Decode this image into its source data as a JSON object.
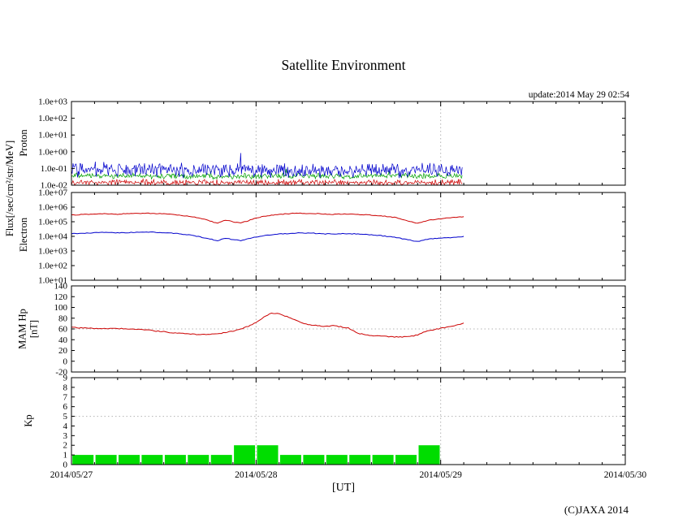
{
  "page": {
    "title": "Satellite Environment",
    "update_text": "update:2014 May 29 02:54",
    "copyright": "(C)JAXA 2014",
    "flux_axis_label": "Flux[/sec/cm²/str/MeV]"
  },
  "chart_data": {
    "type": "line",
    "title": "Satellite Environment",
    "x_axis": {
      "label": "[UT]",
      "ticks": [
        "2014/05/27",
        "2014/05/28",
        "2014/05/29",
        "2014/05/30"
      ],
      "range_hours": [
        0,
        72
      ],
      "minor_tick_hours": 3,
      "grid_hours": [
        24,
        48
      ]
    },
    "panels": [
      {
        "id": "proton",
        "ylabel": "Proton",
        "yscale": "log",
        "ylim": [
          0.01,
          1000
        ],
        "yticks": [
          "1.0e+03",
          "1.0e+02",
          "1.0e+01",
          "1.0e+00",
          "1.0e-01",
          "1.0e-02"
        ],
        "data_end_hour": 50.9,
        "noise_series": [
          {
            "name": "proton-flux-green",
            "color": "#00a000",
            "log10_base": -1.45,
            "log10_amp": 0.2
          },
          {
            "name": "proton-flux-red",
            "color": "#cc0000",
            "log10_base": -1.85,
            "log10_amp": 0.22
          },
          {
            "name": "proton-flux-blue",
            "color": "#0000cc",
            "log10_base": -1.12,
            "log10_amp": 0.5
          }
        ]
      },
      {
        "id": "electron",
        "ylabel": "Electron",
        "yscale": "log",
        "ylim": [
          10,
          10000000
        ],
        "yticks": [
          "1.0e+07",
          "1.0e+06",
          "1.0e+05",
          "1.0e+04",
          "1.0e+03",
          "1.0e+02",
          "1.0e+01"
        ],
        "series": [
          {
            "name": "electron-flux-red",
            "color": "#cc0000",
            "x_start": 0,
            "x_step_hours": 1,
            "values": [
              280000.0,
              300000.0,
              320000.0,
              340000.0,
              350000.0,
              340000.0,
              330000.0,
              350000.0,
              360000.0,
              370000.0,
              380000.0,
              370000.0,
              350000.0,
              320000.0,
              290000.0,
              240000.0,
              200000.0,
              160000.0,
              110000.0,
              80000.0,
              130000.0,
              100000.0,
              80000.0,
              120000.0,
              180000.0,
              230000.0,
              280000.0,
              320000.0,
              350000.0,
              370000.0,
              380000.0,
              370000.0,
              360000.0,
              340000.0,
              320000.0,
              330000.0,
              340000.0,
              320000.0,
              300000.0,
              280000.0,
              260000.0,
              230000.0,
              200000.0,
              140000.0,
              100000.0,
              80000.0,
              110000.0,
              140000.0,
              160000.0,
              180000.0,
              200000.0,
              220000.0
            ]
          },
          {
            "name": "electron-flux-blue",
            "color": "#0000cc",
            "x_start": 0,
            "x_step_hours": 1,
            "values": [
              15000.0,
              16000.0,
              17000.0,
              18000.0,
              18500.0,
              18000.0,
              17500.0,
              18000.0,
              18500.0,
              19000.0,
              19500.0,
              19000.0,
              18000.0,
              16500.0,
              15000.0,
              13000.0,
              11000.0,
              8500.0,
              6500.0,
              5000.0,
              7500.0,
              6000.0,
              5000.0,
              7000.0,
              9000.0,
              11000.0,
              13000.0,
              14500.0,
              15500.0,
              16500.0,
              17000.0,
              16500.0,
              16000.0,
              15000.0,
              14500.0,
              15000.0,
              15500.0,
              14500.0,
              13500.0,
              12500.0,
              11500.0,
              10000.0,
              8500.0,
              7000.0,
              5500.0,
              4500.0,
              6000.0,
              7000.0,
              7500.0,
              8000.0,
              9000.0,
              10000.0
            ]
          }
        ]
      },
      {
        "id": "mam-hp",
        "ylabel": "MAM Hp",
        "ylabel_unit": "[nT]",
        "yscale": "linear",
        "ylim": [
          -20,
          140
        ],
        "ytick_values": [
          140,
          120,
          100,
          80,
          60,
          40,
          20,
          0,
          -20
        ],
        "threshold": 60,
        "series": [
          {
            "name": "hp-field-red",
            "color": "#cc0000",
            "x_start": 0,
            "x_step_hours": 1,
            "values": [
              63,
              62,
              62,
              61,
              61,
              61,
              61,
              60,
              60,
              59,
              58,
              56,
              55,
              53,
              52,
              51,
              50,
              50,
              50,
              51,
              53,
              56,
              60,
              65,
              72,
              82,
              90,
              88,
              83,
              77,
              71,
              68,
              66,
              65,
              66,
              64,
              62,
              53,
              50,
              48,
              47,
              46,
              45,
              45,
              46,
              49,
              55,
              58,
              61,
              64,
              67,
              71
            ]
          }
        ]
      },
      {
        "id": "kp",
        "ylabel": "Kp",
        "yscale": "linear",
        "ylim": [
          0,
          9
        ],
        "ytick_values": [
          9,
          8,
          7,
          6,
          5,
          4,
          3,
          2,
          1,
          0
        ],
        "threshold": 5,
        "bars": {
          "name": "kp-index-bars",
          "color": "#00dd00",
          "start_hour": 0,
          "interval_hours": 3,
          "values": [
            1,
            1,
            1,
            1,
            1,
            1,
            1,
            2,
            2,
            1,
            1,
            1,
            1,
            1,
            1,
            2
          ]
        }
      }
    ]
  }
}
